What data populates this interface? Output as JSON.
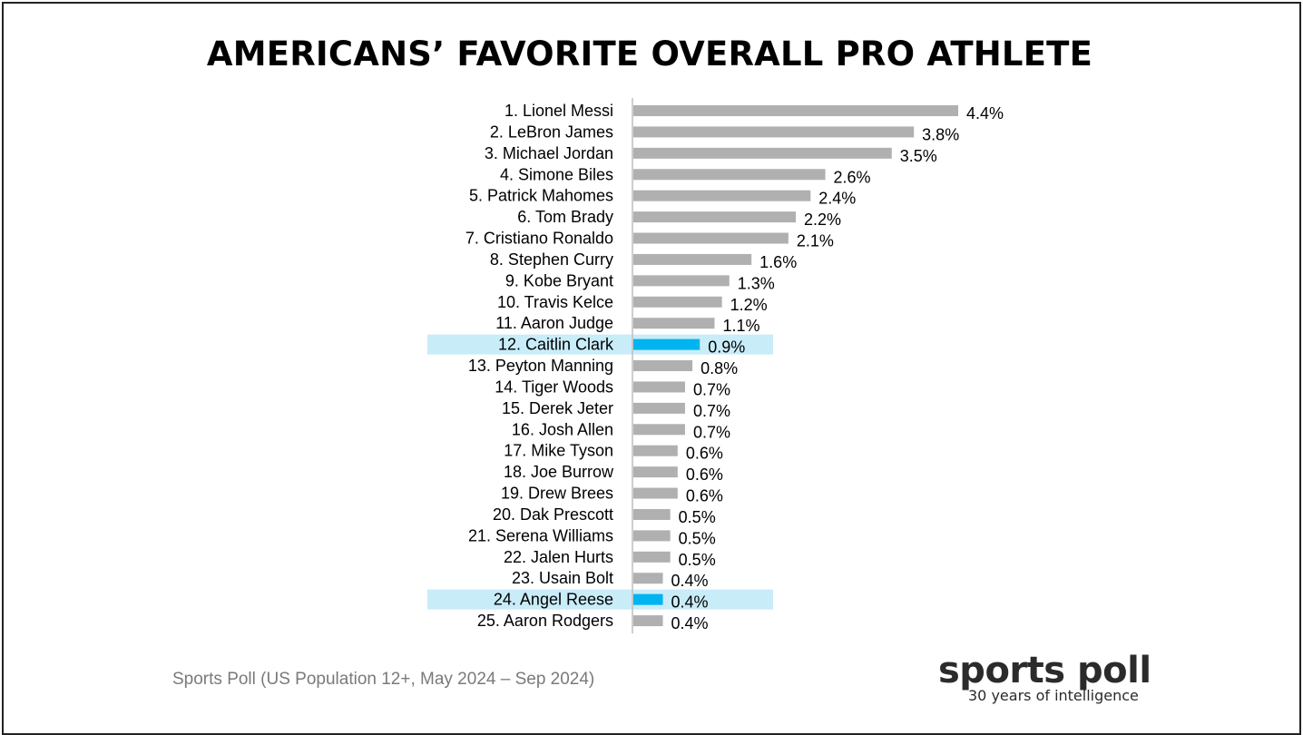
{
  "title": "AMERICANS’ FAVORITE OVERALL PRO ATHLETE",
  "source_note": "Sports Poll (US Population 12+, May 2024 – Sep 2024)",
  "logo": {
    "name": "sports poll",
    "tagline": "30 years of intelligence"
  },
  "colors": {
    "bar": "#b0b0b0",
    "highlight_bar": "#00b4f0",
    "highlight_band": "#c9ecf9",
    "axis": "#bdbdbd",
    "text": "#000000"
  },
  "chart_data": {
    "type": "bar",
    "orientation": "horizontal",
    "categories": [
      "1. Lionel Messi",
      "2. LeBron James",
      "3. Michael Jordan",
      "4. Simone Biles",
      "5. Patrick Mahomes",
      "6. Tom Brady",
      "7. Cristiano Ronaldo",
      "8. Stephen Curry",
      "9. Kobe Bryant",
      "10. Travis Kelce",
      "11. Aaron Judge",
      "12. Caitlin Clark",
      "13. Peyton Manning",
      "14. Tiger Woods",
      "15. Derek Jeter",
      "16. Josh Allen",
      "17. Mike Tyson",
      "18. Joe Burrow",
      "19. Drew Brees",
      "20. Dak Prescott",
      "21. Serena Williams",
      "22. Jalen Hurts",
      "23. Usain Bolt",
      "24. Angel Reese",
      "25. Aaron Rodgers"
    ],
    "values": [
      4.4,
      3.8,
      3.5,
      2.6,
      2.4,
      2.2,
      2.1,
      1.6,
      1.3,
      1.2,
      1.1,
      0.9,
      0.8,
      0.7,
      0.7,
      0.7,
      0.6,
      0.6,
      0.6,
      0.5,
      0.5,
      0.5,
      0.4,
      0.4,
      0.4
    ],
    "value_labels": [
      "4.4%",
      "3.8%",
      "3.5%",
      "2.6%",
      "2.4%",
      "2.2%",
      "2.1%",
      "1.6%",
      "1.3%",
      "1.2%",
      "1.1%",
      "0.9%",
      "0.8%",
      "0.7%",
      "0.7%",
      "0.7%",
      "0.6%",
      "0.6%",
      "0.6%",
      "0.5%",
      "0.5%",
      "0.5%",
      "0.4%",
      "0.4%",
      "0.4%"
    ],
    "highlighted": [
      "12. Caitlin Clark",
      "24. Angel Reese"
    ],
    "unit": "%",
    "xlim": [
      0,
      4.4
    ],
    "grid": false,
    "legend": "none"
  }
}
